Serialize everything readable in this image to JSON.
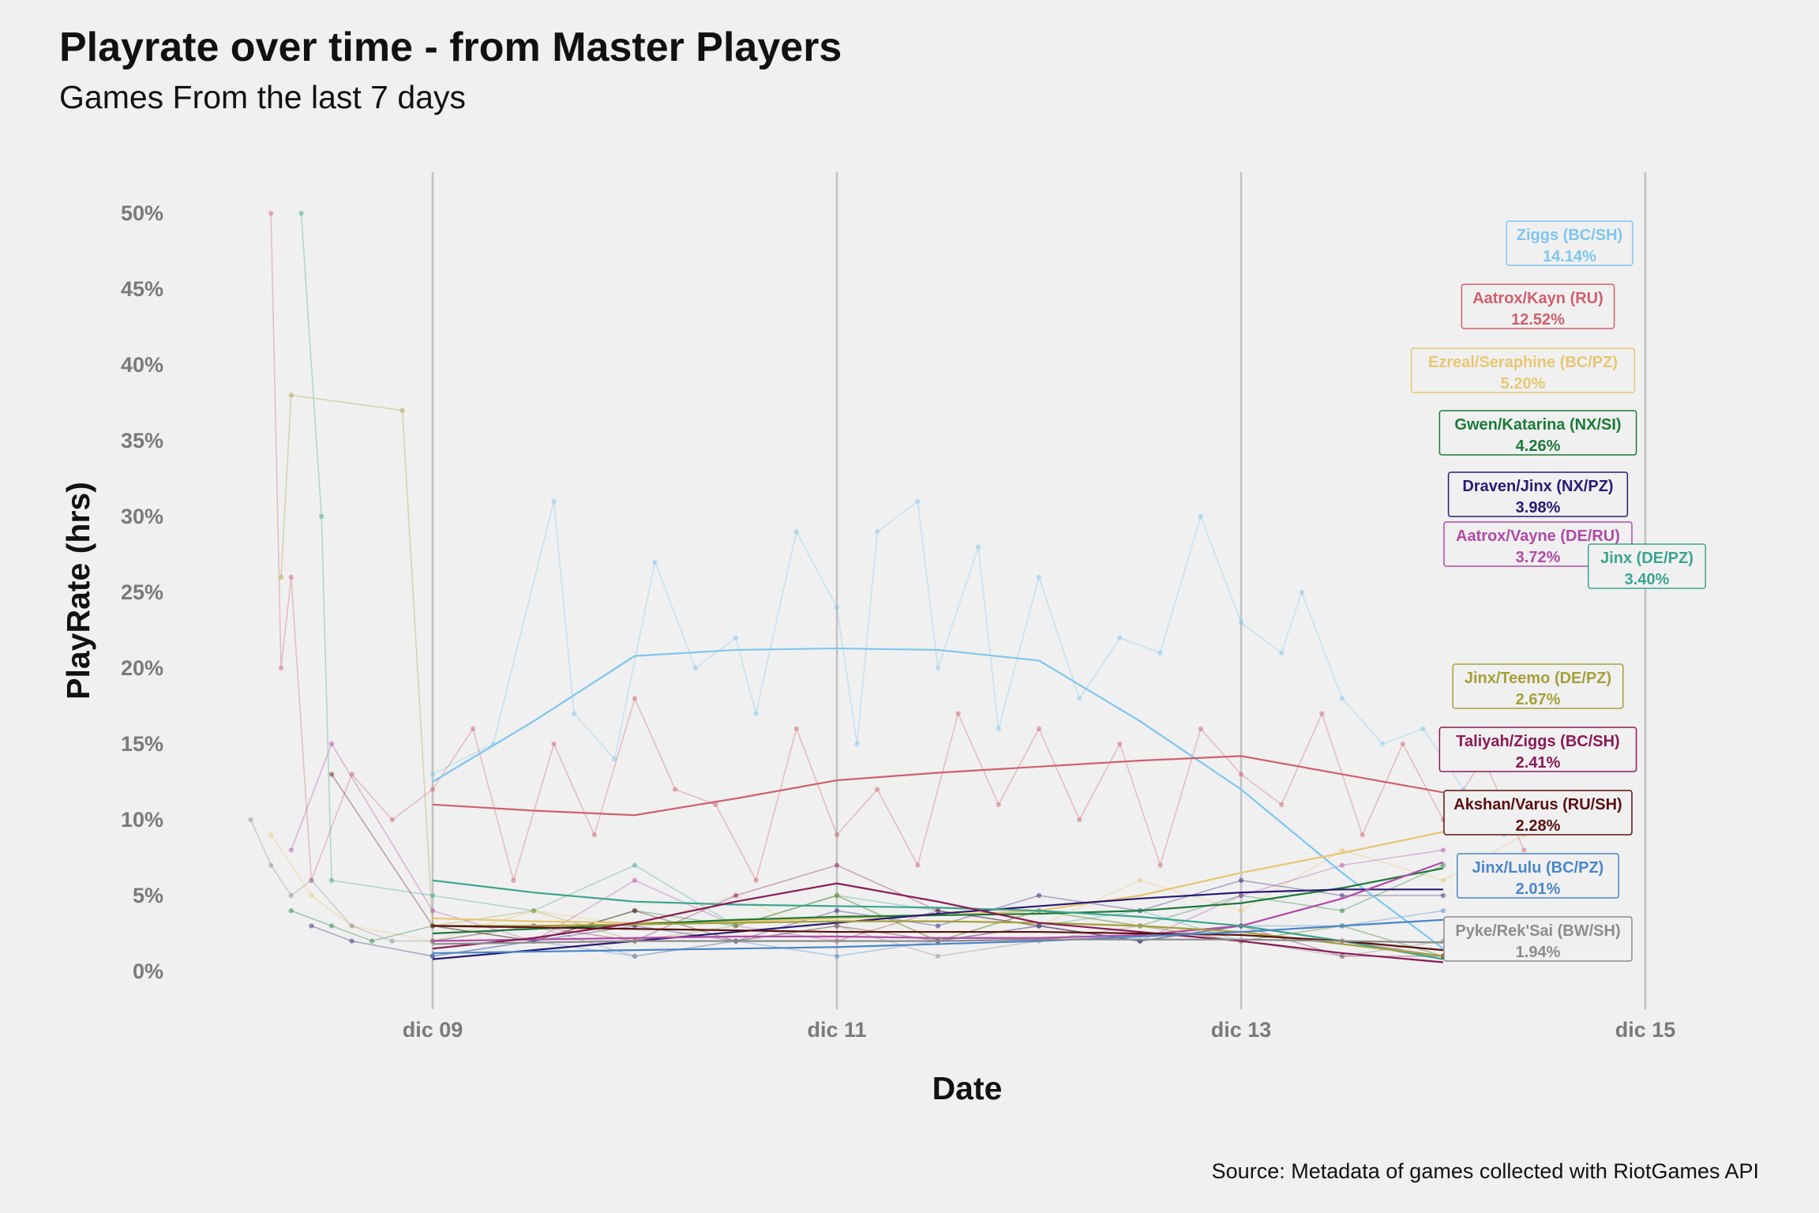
{
  "header": {
    "title": "Playrate over time - from Master Players",
    "subtitle": "Games From the last 7 days"
  },
  "footer": {
    "source": "Source: Metadata of games collected with RiotGames API"
  },
  "chart_data": {
    "type": "line",
    "title": "Playrate over time - from Master Players",
    "subtitle": "Games From the last 7 days",
    "xlabel": "Date",
    "ylabel": "PlayRate (hrs)",
    "x_ticks": [
      "dic 09",
      "dic 11",
      "dic 13",
      "dic 15"
    ],
    "x_tick_positions_days": [
      9,
      11,
      13,
      15
    ],
    "xlim_days": [
      7.0,
      15.6
    ],
    "y_ticks": [
      "0%",
      "5%",
      "10%",
      "15%",
      "20%",
      "25%",
      "30%",
      "35%",
      "40%",
      "45%",
      "50%"
    ],
    "y_tick_values": [
      0,
      5,
      10,
      15,
      20,
      25,
      30,
      35,
      40,
      45,
      50
    ],
    "ylim": [
      -2.5,
      52.5
    ],
    "grid": "vertical major only",
    "legend": "none (direct end labels on the right)",
    "x_unit": "day of December",
    "series": [
      {
        "name": "Ziggs (BC/SH)",
        "value_label": "14.14%",
        "color": "#7ec6ee",
        "trend_x": [
          9.0,
          9.5,
          10.0,
          10.5,
          11.0,
          11.5,
          12.0,
          12.5,
          13.0,
          13.5,
          14.0
        ],
        "trend_y": [
          12.5,
          16.5,
          20.8,
          21.2,
          21.3,
          21.2,
          20.5,
          16.5,
          12.0,
          6.5,
          1.5
        ],
        "raw_x": [
          9.0,
          9.3,
          9.6,
          9.7,
          9.9,
          10.1,
          10.3,
          10.5,
          10.6,
          10.8,
          11.0,
          11.1,
          11.2,
          11.4,
          11.5,
          11.7,
          11.8,
          12.0,
          12.2,
          12.4,
          12.6,
          12.8,
          13.0,
          13.2,
          13.3,
          13.5,
          13.7,
          13.9,
          14.1,
          14.3
        ],
        "raw_y": [
          13,
          15,
          31,
          17,
          14,
          27,
          20,
          22,
          17,
          29,
          24,
          15,
          29,
          31,
          20,
          28,
          16,
          26,
          18,
          22,
          21,
          30,
          23,
          21,
          25,
          18,
          15,
          16,
          12,
          9
        ]
      },
      {
        "name": "Aatrox/Kayn (RU)",
        "value_label": "12.52%",
        "color": "#cf5f6e",
        "trend_x": [
          9.0,
          9.5,
          10.0,
          10.5,
          11.0,
          11.5,
          12.0,
          12.5,
          13.0,
          13.5,
          14.0
        ],
        "trend_y": [
          11.0,
          10.6,
          10.3,
          11.4,
          12.6,
          13.1,
          13.5,
          13.9,
          14.2,
          13.0,
          11.8
        ],
        "raw_x": [
          8.2,
          8.25,
          8.3,
          8.4,
          8.6,
          8.8,
          9.0,
          9.2,
          9.4,
          9.6,
          9.8,
          10.0,
          10.2,
          10.4,
          10.6,
          10.8,
          11.0,
          11.2,
          11.4,
          11.6,
          11.8,
          12.0,
          12.2,
          12.4,
          12.6,
          12.8,
          13.0,
          13.2,
          13.4,
          13.6,
          13.8,
          14.0,
          14.2,
          14.4
        ],
        "raw_y": [
          50,
          20,
          26,
          6,
          13,
          10,
          12,
          16,
          6,
          15,
          9,
          18,
          12,
          11,
          6,
          16,
          9,
          12,
          7,
          17,
          11,
          16,
          10,
          15,
          7,
          16,
          13,
          11,
          17,
          9,
          15,
          10,
          14,
          8
        ]
      },
      {
        "name": "Ezreal/Seraphine (BC/PZ)",
        "value_label": "5.20%",
        "color": "#e8c672",
        "trend_x": [
          9.0,
          9.5,
          10.0,
          10.5,
          11.0,
          11.5,
          12.0,
          12.5,
          13.0,
          13.5,
          14.0
        ],
        "trend_y": [
          3.5,
          3.3,
          3.2,
          3.3,
          3.5,
          3.7,
          4.0,
          5.0,
          6.5,
          7.8,
          9.2
        ],
        "raw_x": [
          8.2,
          8.4,
          8.6,
          9.0,
          9.5,
          10.0,
          10.5,
          11.0,
          11.5,
          12.0,
          12.5,
          13.0,
          13.5,
          14.0,
          14.4
        ],
        "raw_y": [
          9,
          5,
          3,
          2,
          4,
          3,
          5,
          2,
          4,
          3,
          6,
          4,
          8,
          6,
          9
        ]
      },
      {
        "name": "Gwen/Katarina (NX/SI)",
        "value_label": "4.26%",
        "color": "#1b7a3a",
        "trend_x": [
          9.0,
          9.5,
          10.0,
          10.5,
          11.0,
          11.5,
          12.0,
          12.5,
          13.0,
          13.5,
          14.0
        ],
        "trend_y": [
          2.5,
          2.8,
          3.1,
          3.4,
          3.6,
          3.7,
          3.8,
          4.0,
          4.5,
          5.5,
          6.8
        ],
        "raw_x": [
          8.3,
          8.5,
          8.7,
          9.0,
          9.5,
          10.0,
          10.5,
          11.0,
          11.5,
          12.0,
          12.5,
          13.0,
          13.5,
          14.0
        ],
        "raw_y": [
          4,
          3,
          2,
          3,
          2,
          4,
          3,
          5,
          2,
          4,
          3,
          5,
          4,
          7
        ]
      },
      {
        "name": "Draven/Jinx (NX/PZ)",
        "value_label": "3.98%",
        "color": "#2a1a73",
        "trend_x": [
          9.0,
          9.5,
          10.0,
          10.5,
          11.0,
          11.5,
          12.0,
          12.5,
          13.0,
          13.5,
          14.0
        ],
        "trend_y": [
          0.8,
          1.4,
          2.0,
          2.6,
          3.2,
          3.8,
          4.3,
          4.8,
          5.2,
          5.4,
          5.4
        ],
        "raw_x": [
          8.4,
          8.6,
          9.0,
          9.5,
          10.0,
          10.5,
          11.0,
          11.5,
          12.0,
          12.5,
          13.0,
          13.5,
          14.0
        ],
        "raw_y": [
          3,
          2,
          1,
          2,
          3,
          2,
          4,
          3,
          5,
          4,
          6,
          5,
          5
        ]
      },
      {
        "name": "Aatrox/Vayne (DE/RU)",
        "value_label": "3.72%",
        "color": "#b04aa6",
        "trend_x": [
          9.0,
          9.5,
          10.0,
          10.5,
          11.0,
          11.5,
          12.0,
          12.5,
          13.0,
          13.5,
          14.0
        ],
        "trend_y": [
          2.0,
          2.1,
          2.2,
          2.3,
          2.3,
          2.2,
          2.2,
          2.4,
          3.0,
          4.8,
          7.2
        ],
        "raw_x": [
          8.3,
          8.5,
          9.0,
          9.5,
          10.0,
          10.5,
          11.0,
          11.5,
          12.0,
          12.5,
          13.0,
          13.5,
          14.0
        ],
        "raw_y": [
          8,
          15,
          4,
          2,
          6,
          3,
          2,
          4,
          3,
          2,
          5,
          7,
          8
        ]
      },
      {
        "name": "Jinx (DE/PZ)",
        "value_label": "3.40%",
        "color": "#3aa58f",
        "trend_x": [
          9.0,
          9.5,
          10.0,
          10.5,
          11.0,
          11.5,
          12.0,
          12.5,
          13.0,
          13.5,
          14.0
        ],
        "trend_y": [
          6.0,
          5.2,
          4.6,
          4.4,
          4.3,
          4.2,
          4.0,
          3.6,
          3.0,
          2.0,
          0.8
        ],
        "raw_x": [
          8.35,
          8.45,
          8.5,
          9.0,
          9.5,
          10.0,
          10.5,
          11.0,
          11.5,
          12.0,
          12.5,
          13.0,
          13.5,
          14.0
        ],
        "raw_y": [
          50,
          30,
          6,
          5,
          4,
          7,
          3,
          5,
          4,
          3,
          4,
          2,
          3,
          1
        ]
      },
      {
        "name": "Jinx/Teemo (DE/PZ)",
        "value_label": "2.67%",
        "color": "#a5a03a",
        "trend_x": [
          9.0,
          9.5,
          10.0,
          10.5,
          11.0,
          11.5,
          12.0,
          12.5,
          13.0,
          13.5,
          14.0
        ],
        "trend_y": [
          3.0,
          3.0,
          3.1,
          3.2,
          3.3,
          3.3,
          3.2,
          3.0,
          2.6,
          1.8,
          1.0
        ],
        "raw_x": [
          8.25,
          8.3,
          8.85,
          9.0,
          9.5,
          10.0,
          10.5,
          11.0,
          11.5,
          12.0,
          12.5,
          13.0,
          13.5,
          14.0
        ],
        "raw_y": [
          26,
          38,
          37,
          3,
          4,
          2,
          3,
          5,
          2,
          4,
          3,
          2,
          3,
          1
        ]
      },
      {
        "name": "Taliyah/Ziggs (BC/SH)",
        "value_label": "2.41%",
        "color": "#8a1a55",
        "trend_x": [
          9.0,
          9.5,
          10.0,
          10.5,
          11.0,
          11.5,
          12.0,
          12.5,
          13.0,
          13.5,
          14.0
        ],
        "trend_y": [
          1.5,
          2.2,
          3.2,
          4.6,
          5.8,
          4.6,
          3.2,
          2.6,
          2.0,
          1.2,
          0.6
        ],
        "raw_x": [
          9.0,
          9.5,
          10.0,
          10.5,
          11.0,
          11.5,
          12.0,
          12.5,
          13.0,
          13.5,
          14.0
        ],
        "raw_y": [
          2,
          3,
          2,
          5,
          7,
          4,
          3,
          2,
          3,
          1,
          1
        ]
      },
      {
        "name": "Akshan/Varus (RU/SH)",
        "value_label": "2.28%",
        "color": "#5a1010",
        "trend_x": [
          9.0,
          9.5,
          10.0,
          10.5,
          11.0,
          11.5,
          12.0,
          12.5,
          13.0,
          13.5,
          14.0
        ],
        "trend_y": [
          3.0,
          2.9,
          2.8,
          2.7,
          2.6,
          2.6,
          2.6,
          2.5,
          2.4,
          2.0,
          1.4
        ],
        "raw_x": [
          8.5,
          9.0,
          9.5,
          10.0,
          10.5,
          11.0,
          11.5,
          12.0,
          12.5,
          13.0,
          13.5,
          14.0
        ],
        "raw_y": [
          13,
          3,
          2,
          4,
          2,
          3,
          2,
          3,
          2,
          3,
          2,
          1
        ]
      },
      {
        "name": "Jinx/Lulu (BC/PZ)",
        "value_label": "2.01%",
        "color": "#4a86c8",
        "trend_x": [
          9.0,
          9.5,
          10.0,
          10.5,
          11.0,
          11.5,
          12.0,
          12.5,
          13.0,
          13.5,
          14.0
        ],
        "trend_y": [
          1.2,
          1.3,
          1.4,
          1.5,
          1.6,
          1.8,
          2.0,
          2.3,
          2.6,
          3.0,
          3.4
        ],
        "raw_x": [
          9.0,
          9.5,
          10.0,
          10.5,
          11.0,
          11.5,
          12.0,
          12.5,
          13.0,
          13.5,
          14.0
        ],
        "raw_y": [
          1,
          2,
          1,
          2,
          1,
          2,
          3,
          2,
          3,
          3,
          4
        ]
      },
      {
        "name": "Pyke/Rek'Sai (BW/SH)",
        "value_label": "1.94%",
        "color": "#8c8c8c",
        "trend_x": [
          9.0,
          9.5,
          10.0,
          10.5,
          11.0,
          11.5,
          12.0,
          12.5,
          13.0,
          13.5,
          14.0
        ],
        "trend_y": [
          1.8,
          1.9,
          2.0,
          2.0,
          2.0,
          2.0,
          2.1,
          2.1,
          2.1,
          2.0,
          1.9
        ],
        "raw_x": [
          8.1,
          8.2,
          8.3,
          8.4,
          8.6,
          8.8,
          9.0,
          9.5,
          10.0,
          10.5,
          11.0,
          11.5,
          12.0,
          12.5,
          13.0,
          13.5,
          14.0,
          14.5
        ],
        "raw_y": [
          10,
          7,
          5,
          6,
          3,
          2,
          2,
          3,
          1,
          2,
          3,
          1,
          2,
          3,
          2,
          1,
          2,
          1
        ]
      }
    ]
  }
}
